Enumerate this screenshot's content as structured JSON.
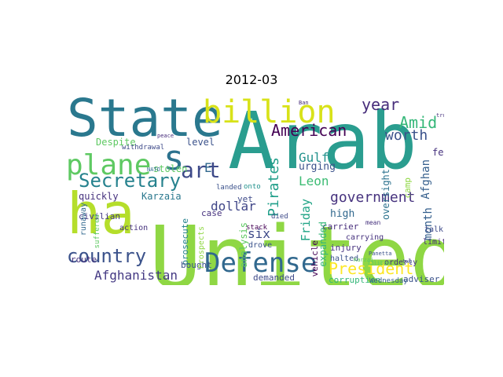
{
  "figure": {
    "title": "2012-03"
  },
  "words": [
    {
      "text": "United",
      "color": "#8fd744"
    },
    {
      "text": "Arab",
      "color": "#2a9d8f"
    },
    {
      "text": "State",
      "color": "#2a788e"
    },
    {
      "text": "ha",
      "color": "#b5de2b"
    },
    {
      "text": "billion",
      "color": "#d8e219"
    },
    {
      "text": "plane",
      "color": "#5ec962"
    },
    {
      "text": "Defense",
      "color": "#31688e"
    },
    {
      "text": "Secretary",
      "color": "#26828e"
    },
    {
      "text": "country",
      "color": "#3b528b"
    },
    {
      "text": "American",
      "color": "#440154"
    },
    {
      "text": "art",
      "color": "#3e4a89"
    },
    {
      "text": "s",
      "color": "#2c728e"
    },
    {
      "text": "year",
      "color": "#472d7b"
    },
    {
      "text": "Amid",
      "color": "#35b779"
    },
    {
      "text": "worth",
      "color": "#3b528b"
    },
    {
      "text": "government",
      "color": "#46327e"
    },
    {
      "text": "Gulf",
      "color": "#21918c"
    },
    {
      "text": "Leon",
      "color": "#3dbc74"
    },
    {
      "text": "President",
      "color": "#fde725"
    },
    {
      "text": "Afghanistan",
      "color": "#443983"
    },
    {
      "text": "Pirates",
      "color": "#1f9e89"
    },
    {
      "text": "dollar",
      "color": "#404688"
    },
    {
      "text": "month",
      "color": "#355f8d"
    },
    {
      "text": "Friday",
      "color": "#20a486"
    },
    {
      "text": "six",
      "color": "#3e4a89"
    },
    {
      "text": "Afghan",
      "color": "#355f8d"
    },
    {
      "text": "Despite",
      "color": "#5ec962"
    },
    {
      "text": "level",
      "color": "#3b528b"
    },
    {
      "text": "E",
      "color": "#31688e"
    },
    {
      "text": "Karzaia",
      "color": "#2a788e"
    },
    {
      "text": "quickly",
      "color": "#46327e"
    },
    {
      "text": "civilian",
      "color": "#443983"
    },
    {
      "text": "prosecute",
      "color": "#26828e"
    },
    {
      "text": "urging",
      "color": "#3b528b"
    },
    {
      "text": "high",
      "color": "#31688e"
    },
    {
      "text": "demanded",
      "color": "#3e4a89"
    },
    {
      "text": "carrier",
      "color": "#472d7b"
    },
    {
      "text": "oversight",
      "color": "#2c728e"
    },
    {
      "text": "camp",
      "color": "#8fd744"
    },
    {
      "text": "feel",
      "color": "#46327e"
    },
    {
      "text": "corruption",
      "color": "#35b779"
    },
    {
      "text": "adviser",
      "color": "#3b528b"
    },
    {
      "text": "Wednesday",
      "color": "#355f8d"
    },
    {
      "text": "stolen",
      "color": "#5ec962"
    },
    {
      "text": "case",
      "color": "#46327e"
    },
    {
      "text": "yet",
      "color": "#3e4a89"
    },
    {
      "text": "runaway",
      "color": "#31688e"
    },
    {
      "text": "suffered",
      "color": "#5ec962"
    },
    {
      "text": "route",
      "color": "#46327e"
    },
    {
      "text": "bought",
      "color": "#3b528b"
    },
    {
      "text": "Prospects",
      "color": "#8fd744"
    },
    {
      "text": "expanded",
      "color": "#35b779"
    },
    {
      "text": "analysis",
      "color": "#5ec962"
    },
    {
      "text": "vehicle",
      "color": "#440154"
    },
    {
      "text": "injury",
      "color": "#46327e"
    },
    {
      "text": "halted",
      "color": "#3b528b"
    },
    {
      "text": "orderly",
      "color": "#46327e"
    },
    {
      "text": "talk",
      "color": "#3e4a89"
    },
    {
      "text": "limit",
      "color": "#472d7b"
    },
    {
      "text": "action",
      "color": "#46327e"
    },
    {
      "text": "drove",
      "color": "#3b528b"
    },
    {
      "text": "stack",
      "color": "#440154"
    },
    {
      "text": "died",
      "color": "#3e4a89"
    },
    {
      "text": "carrying",
      "color": "#46327e"
    },
    {
      "text": "mean",
      "color": "#46327e"
    },
    {
      "text": "landed",
      "color": "#3b528b"
    },
    {
      "text": "onto",
      "color": "#21918c"
    },
    {
      "text": "withdrawal",
      "color": "#3e4a89"
    },
    {
      "text": "peace",
      "color": "#472d7b"
    },
    {
      "text": "NATO",
      "color": "#31688e"
    },
    {
      "text": "Panetta",
      "color": "#3b528b"
    },
    {
      "text": "Taliban",
      "color": "#5ec962"
    },
    {
      "text": "troop",
      "color": "#46327e"
    },
    {
      "text": "two",
      "color": "#3b528b"
    },
    {
      "text": "Ban",
      "color": "#472d7b"
    },
    {
      "text": "Karzai",
      "color": "#5ec962"
    }
  ]
}
